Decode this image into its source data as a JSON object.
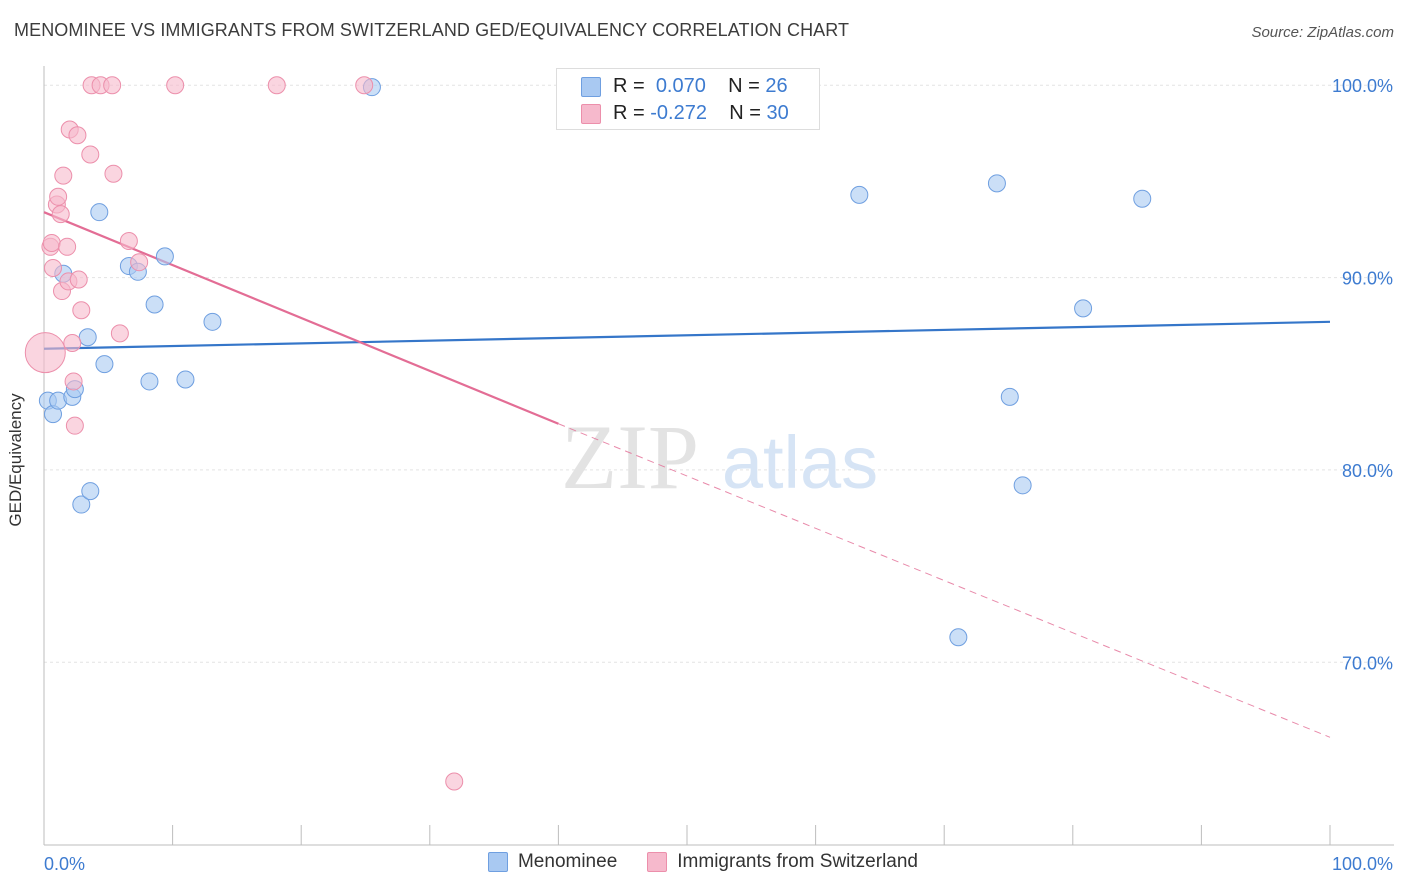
{
  "title": "MENOMINEE VS IMMIGRANTS FROM SWITZERLAND GED/EQUIVALENCY CORRELATION CHART",
  "source": "Source: ZipAtlas.com",
  "watermark": {
    "zip": "ZIP",
    "atlas": "atlas"
  },
  "colors": {
    "blue_fill": "#a9c9f2",
    "blue_stroke": "#6f9fe0",
    "blue_line": "#3576c9",
    "pink_fill": "#f6b9cc",
    "pink_stroke": "#ec8fab",
    "pink_line": "#e36d95",
    "tick_label": "#3d7bd0",
    "grid": "#e3e3e3"
  },
  "legend_box": {
    "rows": [
      {
        "r_label": "R =",
        "r_value": "0.070",
        "n_label": "N =",
        "n_value": "26"
      },
      {
        "r_label": "R =",
        "r_value": "-0.272",
        "n_label": "N =",
        "n_value": "30"
      }
    ]
  },
  "legend_bottom": [
    "Menominee",
    "Immigrants from Switzerland"
  ],
  "chart_data": {
    "type": "scatter",
    "title": "MENOMINEE VS IMMIGRANTS FROM SWITZERLAND GED/EQUIVALENCY CORRELATION CHART",
    "xlabel": "",
    "ylabel": "GED/Equivalency",
    "xlim": [
      0,
      100
    ],
    "ylim": [
      60.5,
      101
    ],
    "x_tick_labels": [
      "0.0%",
      "100.0%"
    ],
    "y_ticks": [
      100,
      90,
      80,
      70
    ],
    "y_tick_labels": [
      "100.0%",
      "90.0%",
      "80.0%",
      "70.0%"
    ],
    "series": [
      {
        "name": "Menominee",
        "points": [
          [
            0.3,
            83.6
          ],
          [
            0.7,
            82.9
          ],
          [
            1.1,
            83.6
          ],
          [
            1.5,
            90.2
          ],
          [
            2.2,
            83.8
          ],
          [
            2.4,
            84.2
          ],
          [
            2.9,
            78.2
          ],
          [
            3.4,
            86.9
          ],
          [
            3.6,
            78.9
          ],
          [
            4.3,
            93.4
          ],
          [
            4.7,
            85.5
          ],
          [
            6.6,
            90.6
          ],
          [
            7.3,
            90.3
          ],
          [
            8.2,
            84.6
          ],
          [
            8.6,
            88.6
          ],
          [
            9.4,
            91.1
          ],
          [
            11.0,
            84.7
          ],
          [
            13.1,
            87.7
          ],
          [
            25.5,
            99.9
          ],
          [
            63.4,
            94.3
          ],
          [
            71.1,
            71.3
          ],
          [
            74.1,
            94.9
          ],
          [
            75.1,
            83.8
          ],
          [
            76.1,
            79.2
          ],
          [
            80.8,
            88.4
          ],
          [
            85.4,
            94.1
          ]
        ],
        "trend": {
          "x": [
            0,
            100
          ],
          "y": [
            86.3,
            87.7
          ],
          "style": "solid"
        }
      },
      {
        "name": "Immigrants from Switzerland",
        "points": [
          [
            0.1,
            86.1
          ],
          [
            0.5,
            91.6
          ],
          [
            0.6,
            91.8
          ],
          [
            0.7,
            90.5
          ],
          [
            1.0,
            93.8
          ],
          [
            1.1,
            94.2
          ],
          [
            1.3,
            93.3
          ],
          [
            1.4,
            89.3
          ],
          [
            1.5,
            95.3
          ],
          [
            1.8,
            91.6
          ],
          [
            1.9,
            89.8
          ],
          [
            2.0,
            97.7
          ],
          [
            2.2,
            86.6
          ],
          [
            2.3,
            84.6
          ],
          [
            2.4,
            82.3
          ],
          [
            2.6,
            97.4
          ],
          [
            2.7,
            89.9
          ],
          [
            2.9,
            88.3
          ],
          [
            3.6,
            96.4
          ],
          [
            3.7,
            100.0
          ],
          [
            4.4,
            100.0
          ],
          [
            5.3,
            100.0
          ],
          [
            5.4,
            95.4
          ],
          [
            5.9,
            87.1
          ],
          [
            6.6,
            91.9
          ],
          [
            7.4,
            90.8
          ],
          [
            10.2,
            100.0
          ],
          [
            18.1,
            100.0
          ],
          [
            24.9,
            100.0
          ],
          [
            31.9,
            63.8
          ]
        ],
        "trend": {
          "x": [
            0,
            40
          ],
          "y": [
            93.4,
            82.4
          ],
          "style": "solid",
          "extended": {
            "x": [
              40,
              100
            ],
            "y": [
              82.4,
              66.1
            ],
            "style": "dashed"
          }
        }
      }
    ]
  }
}
